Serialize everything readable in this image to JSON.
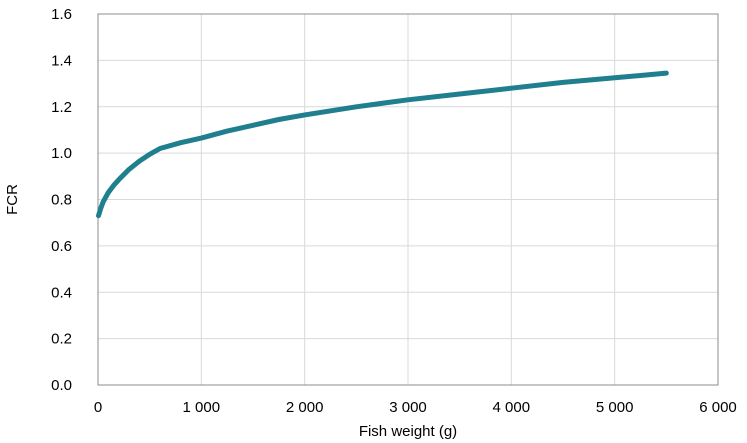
{
  "chart_data": {
    "type": "line",
    "xlabel": "Fish weight (g)",
    "ylabel": "FCR",
    "xlim": [
      0,
      6000
    ],
    "ylim": [
      0,
      1.6
    ],
    "xticks": [
      0,
      1000,
      2000,
      3000,
      4000,
      5000,
      6000
    ],
    "xtick_labels": [
      "0",
      "1 000",
      "2 000",
      "3 000",
      "4 000",
      "5 000",
      "6 000"
    ],
    "yticks": [
      0,
      0.2,
      0.4,
      0.6,
      0.8,
      1.0,
      1.2,
      1.4,
      1.6
    ],
    "ytick_labels": [
      "0.0",
      "0.2",
      "0.4",
      "0.6",
      "0.8",
      "1.0",
      "1.2",
      "1.4",
      "1.6"
    ],
    "grid": true,
    "legend": "none",
    "colors": {
      "line": "#1F7F8E",
      "grid": "#D9D9D9",
      "frame": "#8C8C8C"
    },
    "series": [
      {
        "x": [
          5,
          25,
          50,
          100,
          150,
          200,
          300,
          400,
          500,
          600,
          800,
          1000,
          1250,
          1500,
          1750,
          2000,
          2500,
          3000,
          3500,
          4000,
          4500,
          5000,
          5500
        ],
        "y": [
          0.73,
          0.76,
          0.79,
          0.83,
          0.86,
          0.885,
          0.93,
          0.965,
          0.995,
          1.02,
          1.045,
          1.065,
          1.095,
          1.12,
          1.145,
          1.165,
          1.2,
          1.23,
          1.255,
          1.28,
          1.305,
          1.325,
          1.345
        ]
      }
    ]
  }
}
